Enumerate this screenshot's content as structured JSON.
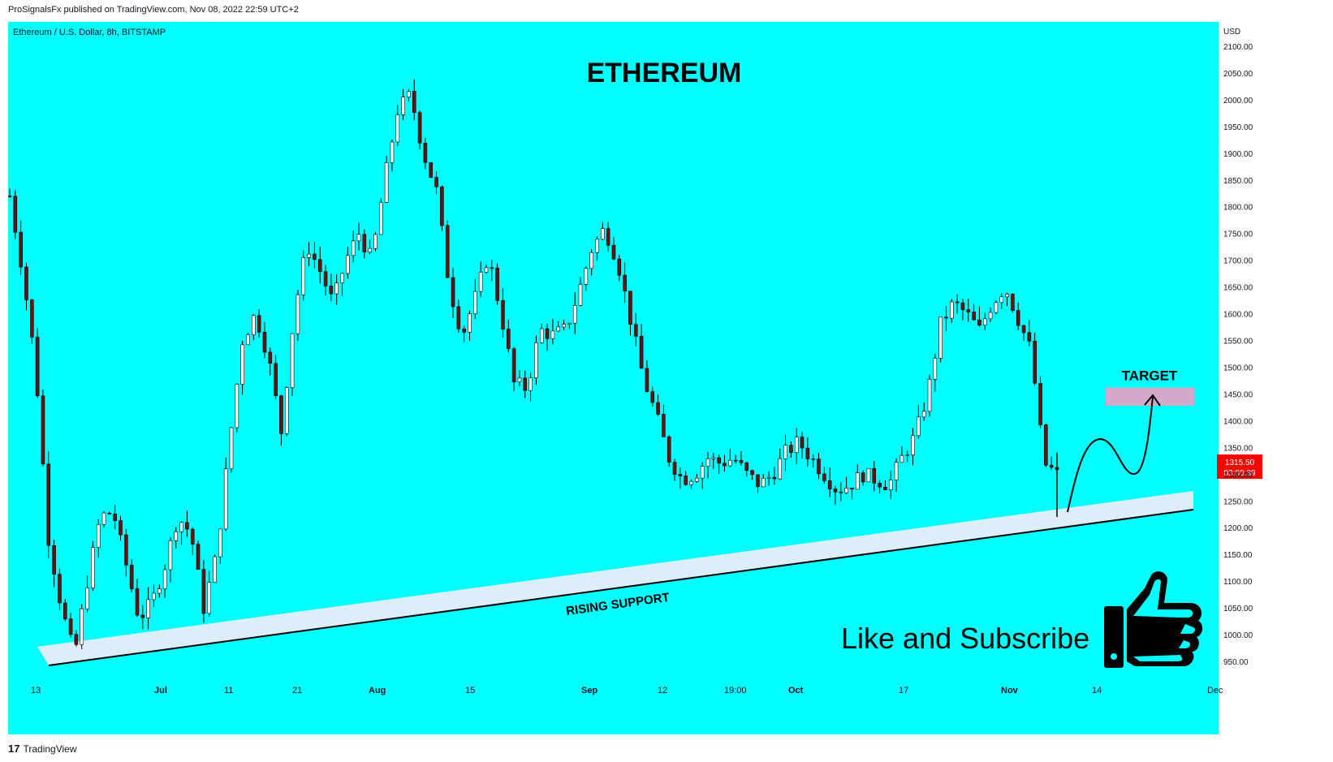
{
  "header": {
    "published_line": "ProSignalsFx published on TradingView.com, Nov 08, 2022 22:59 UTC+2"
  },
  "footer": {
    "brand": "TradingView",
    "logo_glyph": "17"
  },
  "colors": {
    "background": "#00ffff",
    "candle_up": "#ffffff",
    "candle_down": "#6b0f0f",
    "support_band": "#dbeefa",
    "target_box": "#d4a8c8",
    "price_tag": "#ff0000"
  },
  "chart_data": {
    "type": "candlestick",
    "symbol_line": "Ethereum / U.S. Dollar, 8h, BITSTAMP",
    "title": "ETHEREUM",
    "currency": "USD",
    "ylim": [
      900,
      2110
    ],
    "y_ticks": [
      "2100.00",
      "2050.00",
      "2000.00",
      "1950.00",
      "1900.00",
      "1850.00",
      "1800.00",
      "1750.00",
      "1700.00",
      "1650.00",
      "1600.00",
      "1550.00",
      "1500.00",
      "1450.00",
      "1400.00",
      "1350.00",
      "1300.00",
      "1250.00",
      "1200.00",
      "1150.00",
      "1100.00",
      "1050.00",
      "1000.00",
      "950.00"
    ],
    "x_ticks": [
      "13",
      "Jul",
      "11",
      "21",
      "Aug",
      "15",
      "Sep",
      "12",
      "19:00",
      "Oct",
      "17",
      "Nov",
      "14",
      "Dec"
    ],
    "last_price": "1315.50",
    "countdown": "03:00:39",
    "annotations": {
      "support_label": "RISING SUPPORT",
      "target_label": "TARGET",
      "cta": "Like and Subscribe"
    },
    "series": {
      "price_path": [
        1820,
        1680,
        1500,
        1180,
        1050,
        960,
        1100,
        1220,
        1230,
        1130,
        1030,
        1060,
        1130,
        1220,
        1190,
        1050,
        1150,
        1360,
        1550,
        1600,
        1520,
        1380,
        1600,
        1730,
        1680,
        1620,
        1700,
        1750,
        1700,
        1850,
        1980,
        2010,
        1900,
        1830,
        1650,
        1560,
        1630,
        1710,
        1600,
        1470,
        1460,
        1570,
        1560,
        1570,
        1640,
        1720,
        1760,
        1700,
        1590,
        1480,
        1410,
        1330,
        1290,
        1300,
        1330,
        1320,
        1330,
        1300,
        1280,
        1300,
        1340,
        1360,
        1330,
        1300,
        1270,
        1280,
        1300,
        1290,
        1280,
        1330,
        1370,
        1450,
        1580,
        1620,
        1600,
        1570,
        1620,
        1650,
        1590,
        1530,
        1320,
        1300
      ]
    }
  }
}
